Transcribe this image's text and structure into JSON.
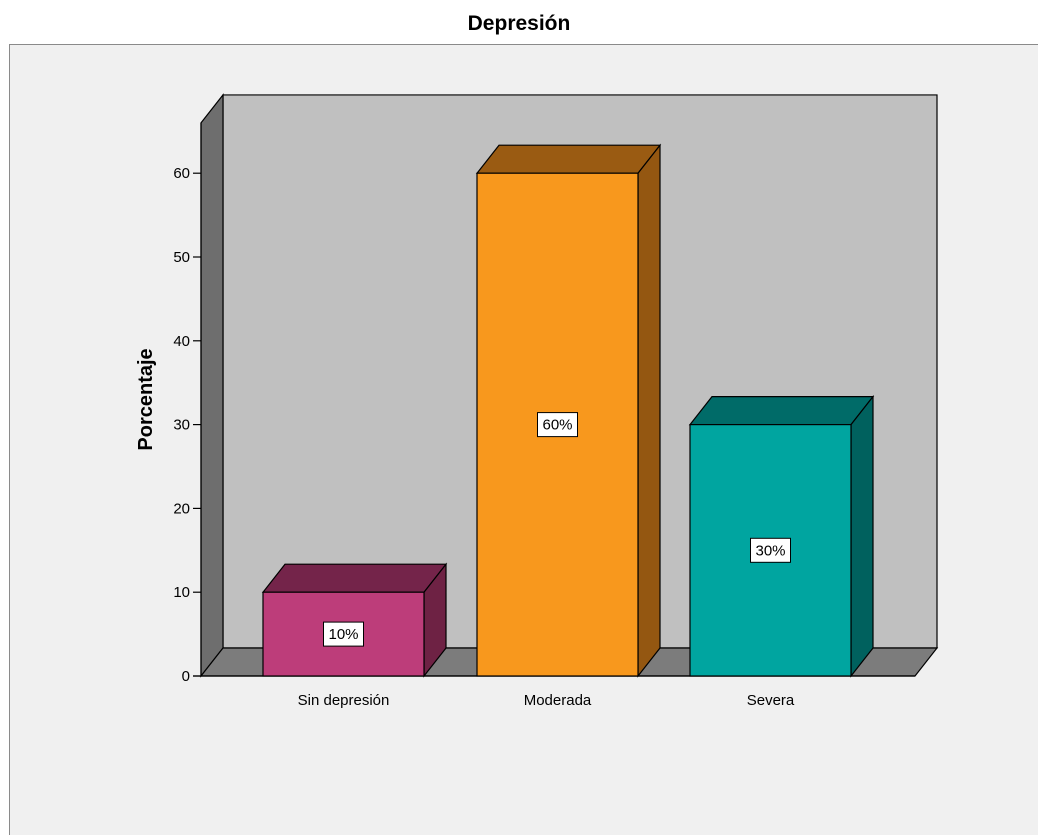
{
  "chart_data": {
    "type": "bar",
    "title": "Depresión",
    "xlabel": "",
    "ylabel": "Porcentaje",
    "categories": [
      "Sin depresión",
      "Moderada",
      "Severa"
    ],
    "values": [
      10,
      60,
      30
    ],
    "data_labels": [
      "10%",
      "60%",
      "30%"
    ],
    "ylim": [
      0,
      66
    ],
    "yticks": [
      "0",
      "10",
      "20",
      "30",
      "40",
      "50",
      "60"
    ],
    "three_d": true,
    "grid": false,
    "legend": "none",
    "colors": {
      "bars": [
        "#bd3d7a",
        "#f8981d",
        "#00a5a0"
      ],
      "bar_tops": [
        "#74244a",
        "#9a5b12",
        "#006b68"
      ],
      "bar_sides": [
        "#6e2244",
        "#945711",
        "#00615e"
      ],
      "back_wall": "#c0c0c0",
      "side_wall": "#6e6e6e",
      "floor": "#7c7c7c",
      "frame_bg": "#f0f0f0"
    }
  }
}
